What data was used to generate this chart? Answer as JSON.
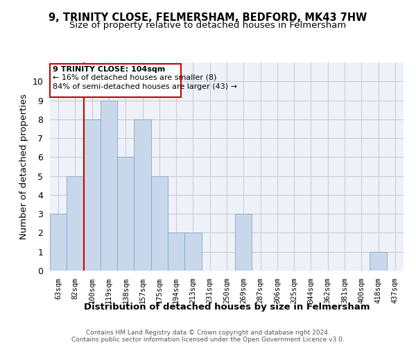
{
  "title1": "9, TRINITY CLOSE, FELMERSHAM, BEDFORD, MK43 7HW",
  "title2": "Size of property relative to detached houses in Felmersham",
  "xlabel": "Distribution of detached houses by size in Felmersham",
  "ylabel": "Number of detached properties",
  "footer1": "Contains HM Land Registry data © Crown copyright and database right 2024.",
  "footer2": "Contains public sector information licensed under the Open Government Licence v3.0.",
  "categories": [
    "63sqm",
    "82sqm",
    "100sqm",
    "119sqm",
    "138sqm",
    "157sqm",
    "175sqm",
    "194sqm",
    "213sqm",
    "231sqm",
    "250sqm",
    "269sqm",
    "287sqm",
    "306sqm",
    "325sqm",
    "344sqm",
    "362sqm",
    "381sqm",
    "400sqm",
    "418sqm",
    "437sqm"
  ],
  "values": [
    3,
    5,
    8,
    9,
    6,
    8,
    5,
    2,
    2,
    0,
    0,
    3,
    0,
    0,
    0,
    0,
    0,
    0,
    0,
    1,
    0
  ],
  "bar_color": "#c8d8ea",
  "bar_edge_color": "#7fa8c8",
  "subject_line_color": "#cc0000",
  "subject_label": "9 TRINITY CLOSE: 104sqm",
  "annotation_line1": "← 16% of detached houses are smaller (8)",
  "annotation_line2": "84% of semi-detached houses are larger (43) →",
  "box_edge_color": "#cc0000",
  "ylim": [
    0,
    11
  ],
  "yticks": [
    0,
    1,
    2,
    3,
    4,
    5,
    6,
    7,
    8,
    9,
    10
  ],
  "grid_color": "#c8ccd8",
  "bg_color": "#eef2f8",
  "title_fontsize": 10.5,
  "subtitle_fontsize": 9.5,
  "axis_label_fontsize": 9.5,
  "tick_fontsize": 7.5,
  "annotation_fontsize": 8,
  "footer_fontsize": 6.5
}
